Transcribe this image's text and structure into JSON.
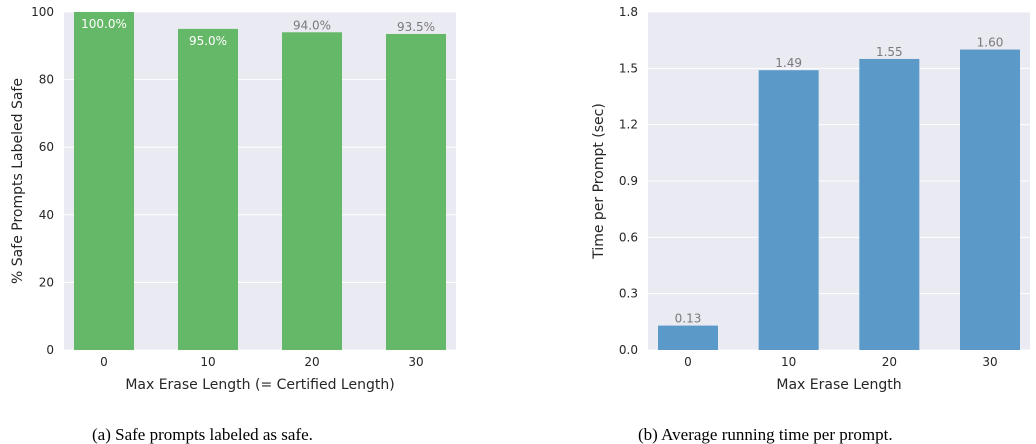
{
  "chart_data": [
    {
      "type": "bar",
      "categories": [
        "0",
        "10",
        "20",
        "30"
      ],
      "values": [
        100.0,
        95.0,
        94.0,
        93.5
      ],
      "value_labels": [
        "100.0%",
        "95.0%",
        "94.0%",
        "93.5%"
      ],
      "xlabel": "Max Erase Length (= Certified Length)",
      "ylabel": "% Safe Prompts Labeled Safe",
      "ylim": [
        0,
        100
      ],
      "yticks": [
        "0",
        "20",
        "40",
        "60",
        "80",
        "100"
      ],
      "grid": true,
      "bar_color": "#65b867",
      "caption": "(a) Safe prompts labeled as safe."
    },
    {
      "type": "bar",
      "categories": [
        "0",
        "10",
        "20",
        "30"
      ],
      "values": [
        0.13,
        1.49,
        1.55,
        1.6
      ],
      "value_labels": [
        "0.13",
        "1.49",
        "1.55",
        "1.60"
      ],
      "xlabel": "Max Erase Length",
      "ylabel": "Time per Prompt (sec)",
      "ylim": [
        0,
        1.8
      ],
      "yticks": [
        "0.0",
        "0.3",
        "0.6",
        "0.9",
        "1.2",
        "1.5",
        "1.8"
      ],
      "grid": true,
      "bar_color": "#5b9ac8",
      "caption": "(b) Average running time per prompt."
    }
  ]
}
